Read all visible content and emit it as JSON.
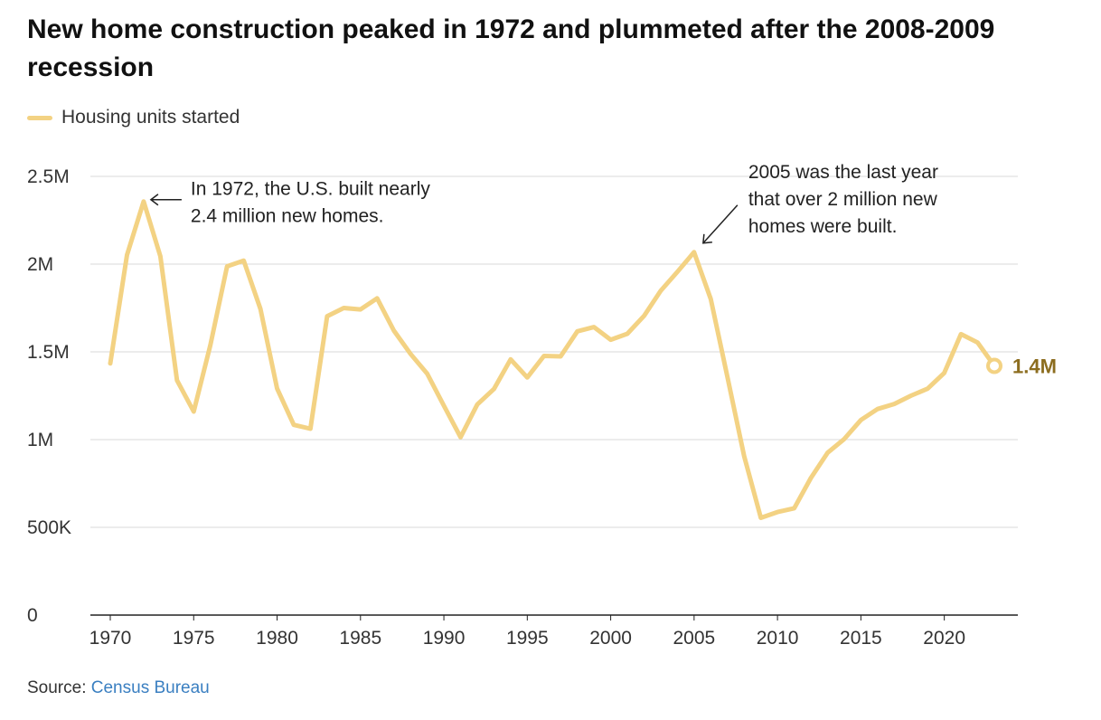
{
  "title": "New home construction peaked in 1972 and plummeted after the 2008-2009 recession",
  "legend": {
    "label": "Housing units started"
  },
  "source": {
    "prefix": "Source: ",
    "link_text": "Census Bureau"
  },
  "colors": {
    "line": "#f3d283",
    "end_label": "#8c6d1f",
    "grid": "#d9d9d9",
    "axis": "#222222"
  },
  "chart_data": {
    "type": "line",
    "title": "New home construction peaked in 1972 and plummeted after the 2008-2009 recession",
    "xlabel": "",
    "ylabel": "",
    "xlim": [
      1970,
      2023
    ],
    "ylim": [
      0,
      2500000
    ],
    "grid": true,
    "legend_placement": "top-left",
    "x_ticks": [
      1970,
      1975,
      1980,
      1985,
      1990,
      1995,
      2000,
      2005,
      2010,
      2015,
      2020
    ],
    "y_ticks": [
      {
        "value": 0,
        "label": "0"
      },
      {
        "value": 500000,
        "label": "500K"
      },
      {
        "value": 1000000,
        "label": "1M"
      },
      {
        "value": 1500000,
        "label": "1.5M"
      },
      {
        "value": 2000000,
        "label": "2M"
      },
      {
        "value": 2500000,
        "label": "2.5M"
      }
    ],
    "series": [
      {
        "name": "Housing units started",
        "x": [
          1970,
          1971,
          1972,
          1973,
          1974,
          1975,
          1976,
          1977,
          1978,
          1979,
          1980,
          1981,
          1982,
          1983,
          1984,
          1985,
          1986,
          1987,
          1988,
          1989,
          1990,
          1991,
          1992,
          1993,
          1994,
          1995,
          1996,
          1997,
          1998,
          1999,
          2000,
          2001,
          2002,
          2003,
          2004,
          2005,
          2006,
          2007,
          2008,
          2009,
          2010,
          2011,
          2012,
          2013,
          2014,
          2015,
          2016,
          2017,
          2018,
          2019,
          2020,
          2021,
          2022,
          2023
        ],
        "values": [
          1434000,
          2052000,
          2357000,
          2045000,
          1338000,
          1160000,
          1538000,
          1987000,
          2020000,
          1745000,
          1292000,
          1084000,
          1062000,
          1703000,
          1750000,
          1742000,
          1805000,
          1621000,
          1488000,
          1376000,
          1193000,
          1014000,
          1200000,
          1288000,
          1457000,
          1354000,
          1477000,
          1474000,
          1617000,
          1641000,
          1569000,
          1603000,
          1705000,
          1848000,
          1956000,
          2068000,
          1801000,
          1355000,
          906000,
          554000,
          587000,
          609000,
          781000,
          925000,
          1003000,
          1112000,
          1174000,
          1203000,
          1250000,
          1290000,
          1380000,
          1601000,
          1553000,
          1420000
        ]
      }
    ],
    "annotations": [
      {
        "x": 1972,
        "y": 2357000,
        "lines": [
          "In 1972, the U.S. built nearly",
          "2.4 million new homes."
        ]
      },
      {
        "x": 2005,
        "y": 2068000,
        "lines": [
          "2005 was the last year",
          "that over 2 million new",
          "homes were built."
        ]
      }
    ],
    "end_label": "1.4M"
  }
}
